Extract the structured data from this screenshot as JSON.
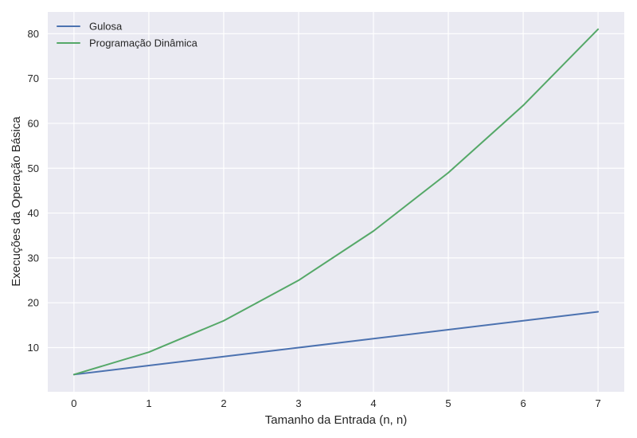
{
  "chart_data": {
    "type": "line",
    "x": [
      0,
      1,
      2,
      3,
      4,
      5,
      6,
      7
    ],
    "series": [
      {
        "name": "Gulosa",
        "color": "#4c72b0",
        "values": [
          4,
          6,
          8,
          10,
          12,
          14,
          16,
          18
        ]
      },
      {
        "name": "Programação Dinâmica",
        "color": "#55a868",
        "values": [
          4,
          9,
          16,
          25,
          36,
          49,
          64,
          81
        ]
      }
    ],
    "title": "",
    "xlabel": "Tamanho da Entrada (n, n)",
    "ylabel": "Execuções da Operação Básica",
    "xlim": [
      -0.35,
      7.35
    ],
    "ylim": [
      0.15,
      84.85
    ],
    "xticks": [
      0,
      1,
      2,
      3,
      4,
      5,
      6,
      7
    ],
    "yticks": [
      10,
      20,
      30,
      40,
      50,
      60,
      70,
      80
    ],
    "grid": true,
    "legend_position": "top-left",
    "background_color": "#eaeaf2",
    "grid_color": "#ffffff"
  }
}
